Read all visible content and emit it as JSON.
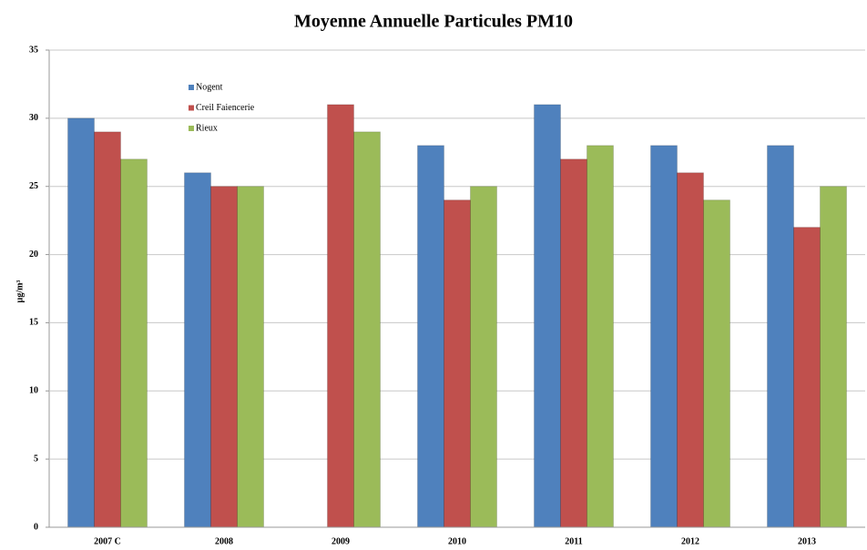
{
  "chart_data": {
    "type": "bar",
    "title": "Moyenne Annuelle Particules PM10",
    "y_label": "µg/m³",
    "categories": [
      "2007 C",
      "2008",
      "2009",
      "2010",
      "2011",
      "2012",
      "2013"
    ],
    "series": [
      {
        "name": "Nogent",
        "color": "#4f81bd",
        "values": [
          30,
          26,
          null,
          28,
          31,
          28,
          28
        ]
      },
      {
        "name": "Creil Faiencerie",
        "color": "#c0504d",
        "values": [
          29,
          25,
          31,
          24,
          27,
          26,
          22
        ]
      },
      {
        "name": "Rieux",
        "color": "#9bbb59",
        "values": [
          27,
          25,
          29,
          25,
          28,
          24,
          25
        ]
      }
    ],
    "ylim": [
      0,
      35
    ],
    "yticks": [
      0,
      5,
      10,
      15,
      20,
      25,
      30,
      35
    ],
    "grid": true,
    "legend": "upper left"
  }
}
